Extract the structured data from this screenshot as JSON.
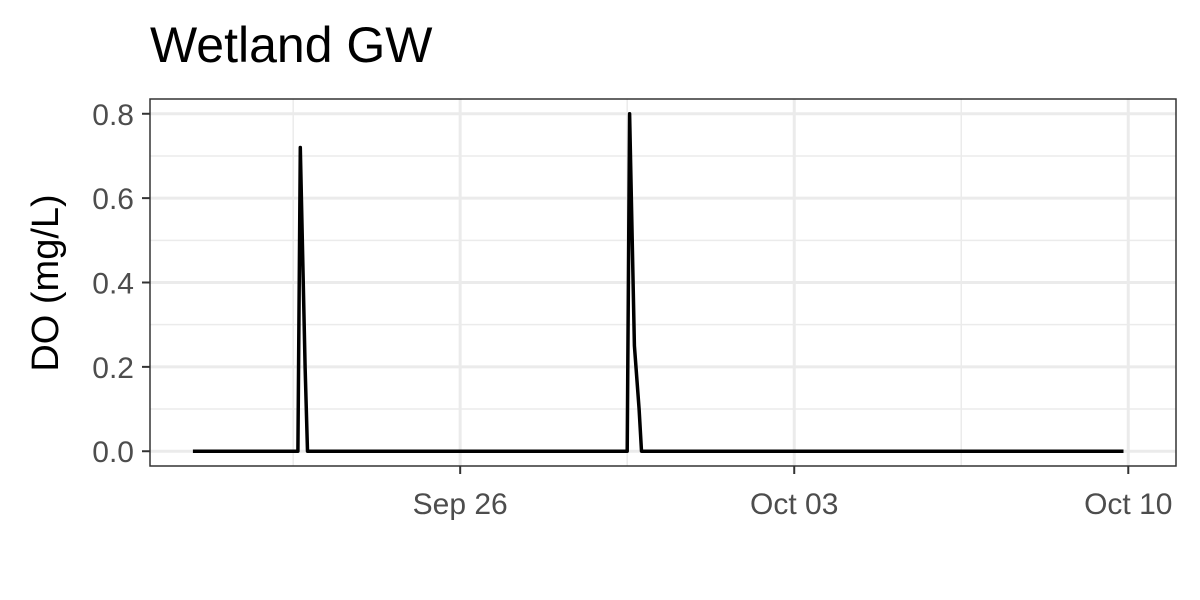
{
  "chart_data": {
    "type": "line",
    "title": "Wetland GW",
    "xlabel": "",
    "ylabel": "DO (mg/L)",
    "ylim": [
      -0.035,
      0.835
    ],
    "yticks": [
      0.0,
      0.2,
      0.4,
      0.6,
      0.8
    ],
    "ytick_labels": [
      "0.0",
      "0.2",
      "0.4",
      "0.6",
      "0.8"
    ],
    "xlim_days": [
      -6.5,
      15.0
    ],
    "xticks": [
      {
        "day": 0,
        "label": "Sep 26"
      },
      {
        "day": 7,
        "label": "Oct 03"
      },
      {
        "day": 14,
        "label": "Oct 10"
      }
    ],
    "x_unit": "days from Sep 26",
    "grid": true,
    "series": [
      {
        "name": "DO",
        "color": "#000000",
        "x": [
          -5.6,
          -3.4,
          -3.35,
          -3.25,
          -3.2,
          -3.15,
          3.5,
          3.55,
          3.65,
          3.75,
          3.8,
          13.9
        ],
        "y": [
          0.0,
          0.0,
          0.72,
          0.2,
          0.0,
          0.0,
          0.0,
          0.8,
          0.25,
          0.1,
          0.0,
          0.0
        ]
      }
    ]
  }
}
